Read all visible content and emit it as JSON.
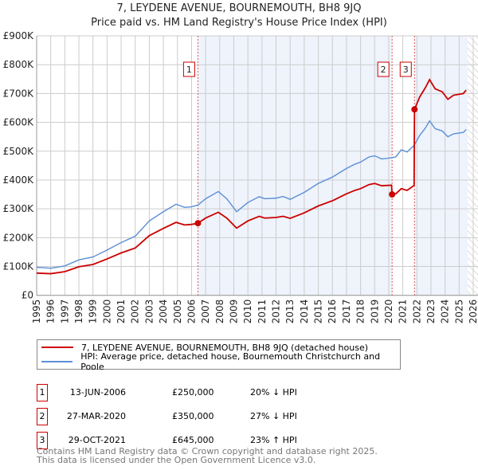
{
  "title": "7, LEYDENE AVENUE, BOURNEMOUTH, BH8 9JQ",
  "subtitle": "Price paid vs. HM Land Registry's House Price Index (HPI)",
  "chart_data": {
    "type": "line",
    "title": "7, LEYDENE AVENUE, BOURNEMOUTH, BH8 9JQ",
    "subtitle": "Price paid vs. HM Land Registry's House Price Index (HPI)",
    "xlim": [
      1995,
      2026
    ],
    "ylim": [
      0,
      900000
    ],
    "x_ticks": [
      "1995",
      "1996",
      "1997",
      "1998",
      "1999",
      "2000",
      "2001",
      "2002",
      "2003",
      "2004",
      "2005",
      "2006",
      "2007",
      "2008",
      "2009",
      "2010",
      "2011",
      "2012",
      "2013",
      "2014",
      "2015",
      "2016",
      "2017",
      "2018",
      "2019",
      "2020",
      "2021",
      "2022",
      "2023",
      "2024",
      "2025",
      "2026"
    ],
    "y_ticks": [
      {
        "v": 0,
        "l": "£0"
      },
      {
        "v": 100000,
        "l": "£100K"
      },
      {
        "v": 200000,
        "l": "£200K"
      },
      {
        "v": 300000,
        "l": "£300K"
      },
      {
        "v": 400000,
        "l": "£400K"
      },
      {
        "v": 500000,
        "l": "£500K"
      },
      {
        "v": 600000,
        "l": "£600K"
      },
      {
        "v": 700000,
        "l": "£700K"
      },
      {
        "v": 800000,
        "l": "£800K"
      },
      {
        "v": 900000,
        "l": "£900K"
      }
    ],
    "grid": true,
    "series": [
      {
        "name": "7, LEYDENE AVENUE, BOURNEMOUTH, BH8 9JQ (detached house)",
        "color": "#cc0000",
        "x": [
          1995,
          1996,
          1997,
          1998,
          1999,
          2000,
          2001,
          2002,
          2003,
          2004,
          2004.9,
          2005.5,
          2006,
          2006.45,
          2007,
          2007.9,
          2008.5,
          2009.2,
          2010,
          2010.8,
          2011.2,
          2012,
          2012.5,
          2013,
          2014,
          2015,
          2016,
          2016.5,
          2017,
          2017.6,
          2018,
          2018.6,
          2019,
          2019.5,
          2020.2,
          2020.24,
          2020.5,
          2020.9,
          2021.3,
          2021.8,
          2021.83,
          2022.2,
          2022.6,
          2022.9,
          2023.3,
          2023.8,
          2024.2,
          2024.6,
          2025.3,
          2025.5
        ],
        "y": [
          77000,
          75000,
          82000,
          99000,
          107000,
          126000,
          147000,
          164000,
          207000,
          232000,
          253000,
          244000,
          246000,
          250000,
          268000,
          288000,
          268000,
          233000,
          258000,
          274000,
          268000,
          270000,
          274000,
          267000,
          286000,
          310000,
          328000,
          340000,
          352000,
          364000,
          370000,
          384000,
          388000,
          380000,
          382000,
          350000,
          352000,
          370000,
          364000,
          381000,
          645000,
          688000,
          720000,
          748000,
          716000,
          706000,
          680000,
          694000,
          700000,
          712000
        ]
      },
      {
        "name": "HPI: Average price, detached house, Bournemouth Christchurch and Poole",
        "color": "#5b8fd6",
        "x": [
          1995,
          1996,
          1997,
          1998,
          1999,
          2000,
          2001,
          2002,
          2003,
          2004,
          2004.9,
          2005.5,
          2006,
          2006.45,
          2007,
          2007.9,
          2008.5,
          2009.2,
          2010,
          2010.8,
          2011.2,
          2012,
          2012.5,
          2013,
          2014,
          2015,
          2016,
          2016.5,
          2017,
          2017.6,
          2018,
          2018.6,
          2019,
          2019.5,
          2020.2,
          2020.5,
          2020.9,
          2021.3,
          2021.8,
          2022.2,
          2022.6,
          2022.9,
          2023.3,
          2023.8,
          2024.2,
          2024.6,
          2025.3,
          2025.5
        ],
        "y": [
          97000,
          94000,
          102000,
          123000,
          133000,
          157000,
          183000,
          205000,
          258000,
          290000,
          316000,
          305000,
          307000,
          313000,
          335000,
          360000,
          335000,
          290000,
          322000,
          342000,
          335000,
          337000,
          343000,
          333000,
          357000,
          388000,
          410000,
          425000,
          440000,
          455000,
          462000,
          480000,
          484000,
          473000,
          477000,
          480000,
          505000,
          497000,
          520000,
          555000,
          580000,
          605000,
          578000,
          570000,
          550000,
          560000,
          565000,
          575000
        ]
      }
    ],
    "sales": [
      {
        "n": "1",
        "x": 2006.45,
        "y": 250000,
        "date": "13-JUN-2006",
        "price": "£250,000",
        "hpi": "20% ↓ HPI"
      },
      {
        "n": "2",
        "x": 2020.24,
        "y": 350000,
        "date": "27-MAR-2020",
        "price": "£350,000",
        "hpi": "27% ↓ HPI"
      },
      {
        "n": "3",
        "x": 2021.83,
        "y": 645000,
        "date": "29-OCT-2021",
        "price": "£645,000",
        "hpi": "23% ↑ HPI"
      }
    ],
    "data_end": 2025.6
  },
  "legend": {
    "red": "7, LEYDENE AVENUE, BOURNEMOUTH, BH8 9JQ (detached house)",
    "blue": "HPI: Average price, detached house, Bournemouth Christchurch and Poole"
  },
  "footer": [
    "Contains HM Land Registry data © Crown copyright and database right 2025.",
    "This data is licensed under the Open Government Licence v3.0."
  ]
}
